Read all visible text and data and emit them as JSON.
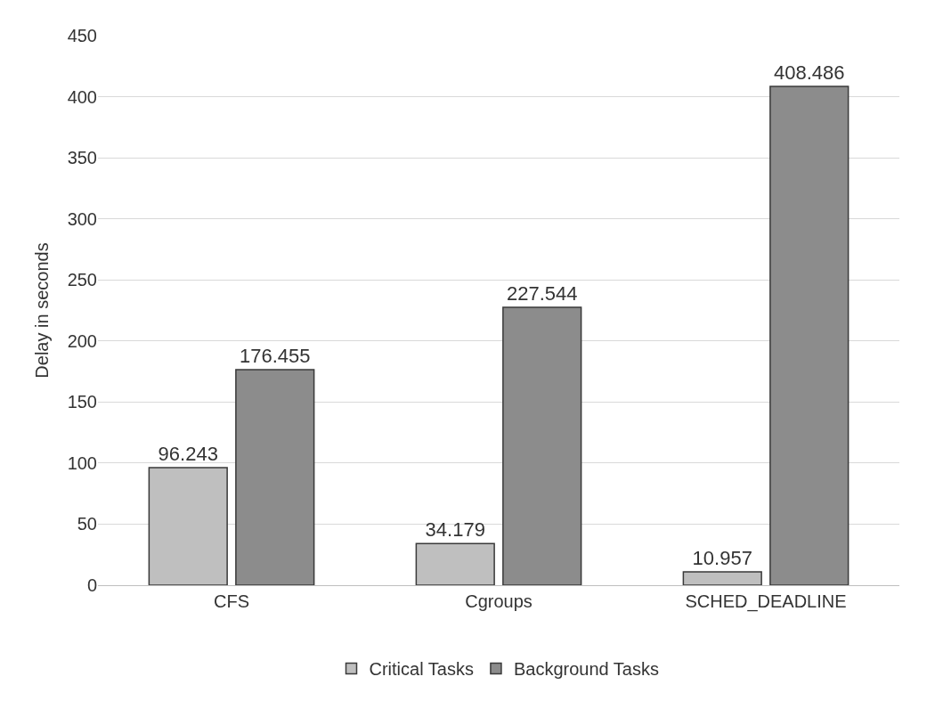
{
  "chart_data": {
    "type": "bar",
    "ylabel": "Delay in seconds",
    "categories": [
      "CFS",
      "Cgroups",
      "SCHED_DEADLINE"
    ],
    "series": [
      {
        "name": "Critical Tasks",
        "color": "#bfbfbf",
        "values": [
          96.243,
          34.179,
          10.957
        ]
      },
      {
        "name": "Background Tasks",
        "color": "#8c8c8c",
        "values": [
          176.455,
          227.544,
          408.486
        ]
      }
    ],
    "ylim": [
      0,
      450
    ],
    "yticks": [
      0,
      50,
      100,
      150,
      200,
      250,
      300,
      350,
      400,
      450
    ],
    "grid": "y",
    "legend": "bottom",
    "data_labels": true
  }
}
